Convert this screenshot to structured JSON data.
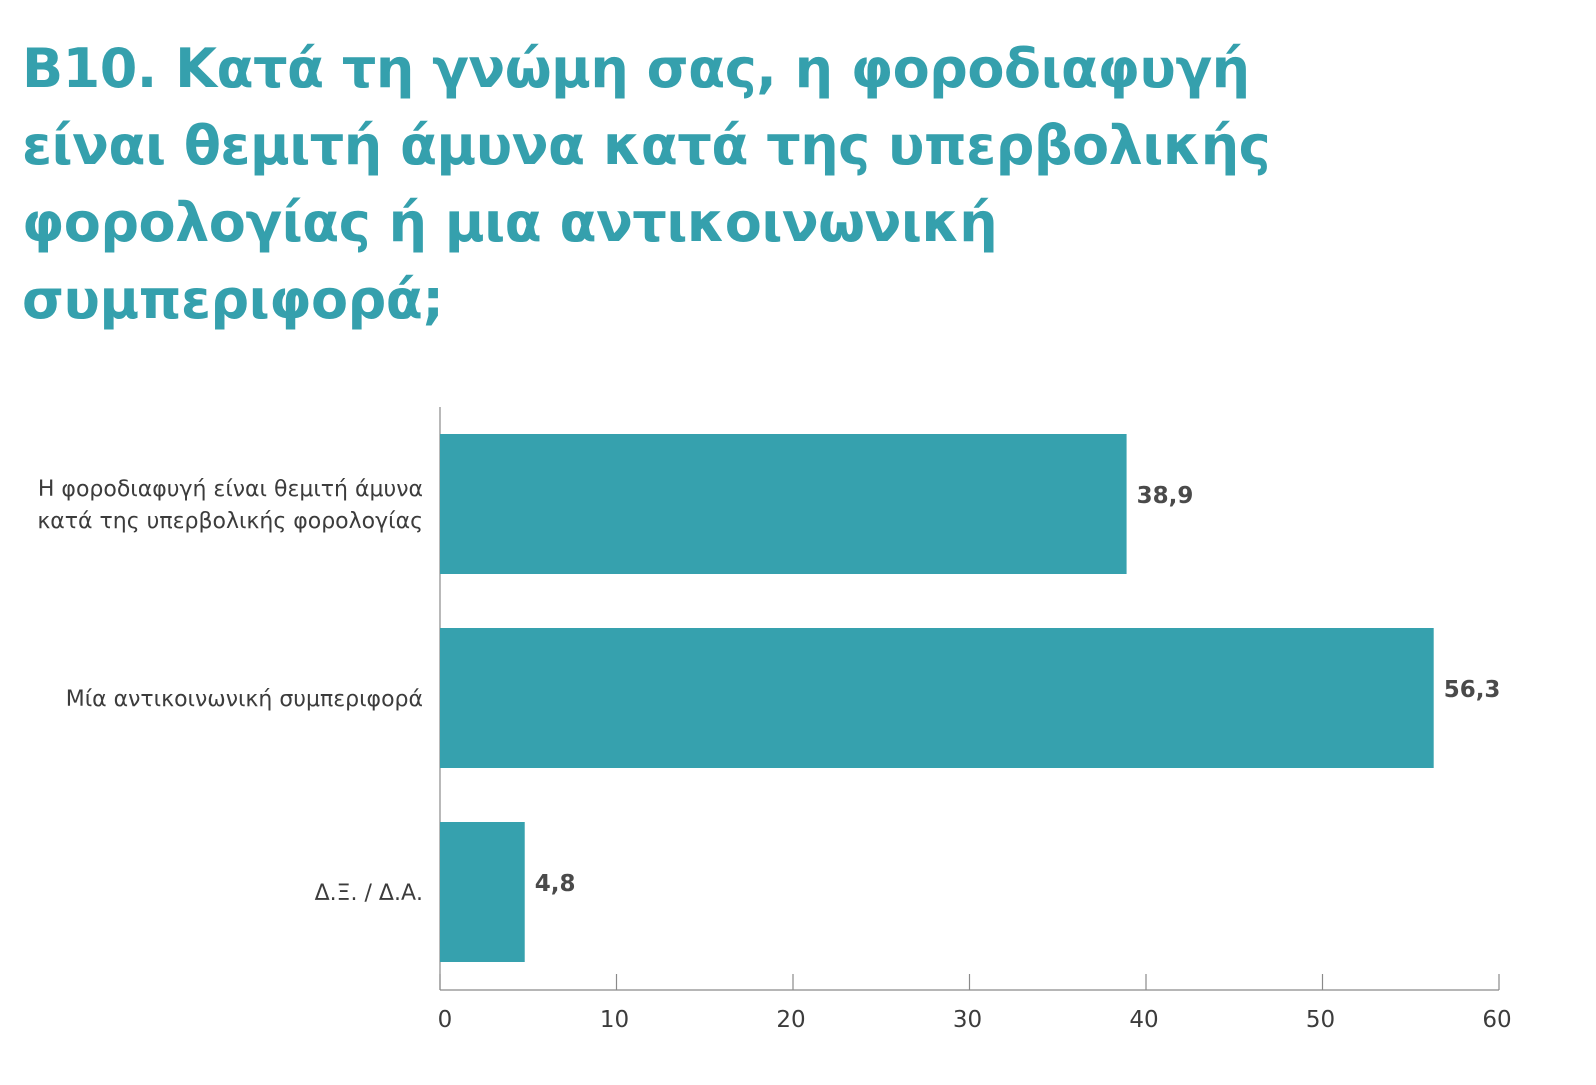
{
  "title_lines": [
    "Β10. Κατά τη γνώμη σας, η φοροδιαφυγή",
    "είναι θεμιτή άμυνα κατά της υπερβολικής",
    "φορολογίας ή μια αντικοινωνική",
    "συμπεριφορά;"
  ],
  "colors": {
    "accent": "#35a0ad",
    "bar": "#36a1ae",
    "axis": "#8a8a8a",
    "label_text": "#3c3c3c",
    "value_text": "#4a4a4a"
  },
  "chart_data": {
    "type": "bar",
    "orientation": "horizontal",
    "categories": [
      [
        "Η φοροδιαφυγή είναι θεμιτή άμυνα",
        "κατά της υπερβολικής φορολογίας"
      ],
      [
        "Μία αντικοινωνική συμπεριφορά"
      ],
      [
        "Δ.Ξ. / Δ.Α."
      ]
    ],
    "values": [
      38.9,
      56.3,
      4.8
    ],
    "value_labels": [
      "38,9",
      "56,3",
      "4,8"
    ],
    "xlim": [
      0,
      60
    ],
    "xticks": [
      0,
      10,
      20,
      30,
      40,
      50,
      60
    ],
    "grid": false,
    "legend": "none"
  }
}
